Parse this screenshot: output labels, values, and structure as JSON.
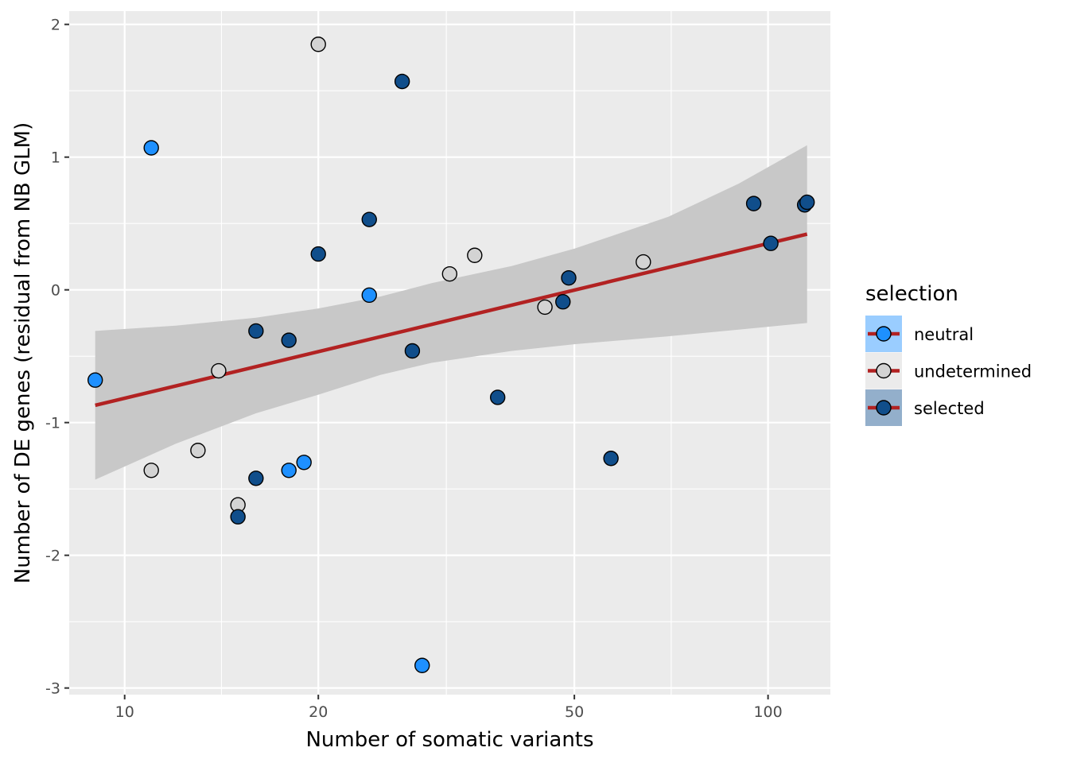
{
  "chart_data": {
    "type": "scatter",
    "title": "",
    "xlabel": "Number of somatic variants",
    "ylabel": "Number of DE genes (residual from NB GLM)",
    "x_scale": "log10",
    "xlim": [
      8.2,
      125
    ],
    "ylim": [
      -3.05,
      2.1
    ],
    "x_ticks": [
      10,
      20,
      50,
      100
    ],
    "x_tick_labels": [
      "10",
      "20",
      "50",
      "100"
    ],
    "y_ticks": [
      -3,
      -2,
      -1,
      0,
      1,
      2
    ],
    "y_tick_labels": [
      "-3",
      "-2",
      "-1",
      "0",
      "1",
      "2"
    ],
    "grid": true,
    "legend": {
      "title": "selection",
      "placement": "right",
      "entries": [
        {
          "key": "neutral",
          "label": "neutral"
        },
        {
          "key": "undetermined",
          "label": "undetermined"
        },
        {
          "key": "selected",
          "label": "selected"
        }
      ]
    },
    "colors": {
      "neutral": "#1e90ff",
      "undetermined": "#d3d3d3",
      "selected": "#104e8b",
      "fit_line": "#b22222",
      "ribbon": "#c8c8c8",
      "panel": "#ebebeb",
      "grid": "#ffffff"
    },
    "series": [
      {
        "name": "neutral",
        "points": [
          {
            "x": 9,
            "y": -0.68
          },
          {
            "x": 11,
            "y": 1.07
          },
          {
            "x": 18,
            "y": -1.36
          },
          {
            "x": 19,
            "y": -1.3
          },
          {
            "x": 24,
            "y": -0.04
          },
          {
            "x": 29,
            "y": -2.83
          }
        ]
      },
      {
        "name": "undetermined",
        "points": [
          {
            "x": 11,
            "y": -1.36
          },
          {
            "x": 13,
            "y": -1.21
          },
          {
            "x": 14,
            "y": -0.61
          },
          {
            "x": 15,
            "y": -1.62
          },
          {
            "x": 20,
            "y": 1.85
          },
          {
            "x": 32,
            "y": 0.12
          },
          {
            "x": 35,
            "y": 0.26
          },
          {
            "x": 45,
            "y": -0.13
          },
          {
            "x": 64,
            "y": 0.21
          }
        ]
      },
      {
        "name": "selected",
        "points": [
          {
            "x": 15,
            "y": -1.71
          },
          {
            "x": 16,
            "y": -0.31
          },
          {
            "x": 16,
            "y": -1.42
          },
          {
            "x": 18,
            "y": -0.38
          },
          {
            "x": 20,
            "y": 0.27
          },
          {
            "x": 24,
            "y": 0.53
          },
          {
            "x": 27,
            "y": 1.57
          },
          {
            "x": 28,
            "y": -0.46
          },
          {
            "x": 38,
            "y": -0.81
          },
          {
            "x": 48,
            "y": -0.09
          },
          {
            "x": 49,
            "y": 0.09
          },
          {
            "x": 57,
            "y": -1.27
          },
          {
            "x": 95,
            "y": 0.65
          },
          {
            "x": 101,
            "y": 0.35
          },
          {
            "x": 114,
            "y": 0.64
          },
          {
            "x": 115,
            "y": 0.66
          }
        ]
      }
    ],
    "fit": {
      "x": [
        9,
        115
      ],
      "y": [
        -0.87,
        0.42
      ]
    },
    "ribbon": {
      "x": [
        9,
        12,
        16,
        20,
        25,
        30,
        40,
        50,
        70,
        90,
        115
      ],
      "lower": [
        -1.43,
        -1.16,
        -0.93,
        -0.79,
        -0.64,
        -0.55,
        -0.46,
        -0.41,
        -0.35,
        -0.3,
        -0.25
      ],
      "upper": [
        -0.31,
        -0.27,
        -0.21,
        -0.14,
        -0.05,
        0.05,
        0.18,
        0.31,
        0.55,
        0.8,
        1.09
      ]
    }
  }
}
